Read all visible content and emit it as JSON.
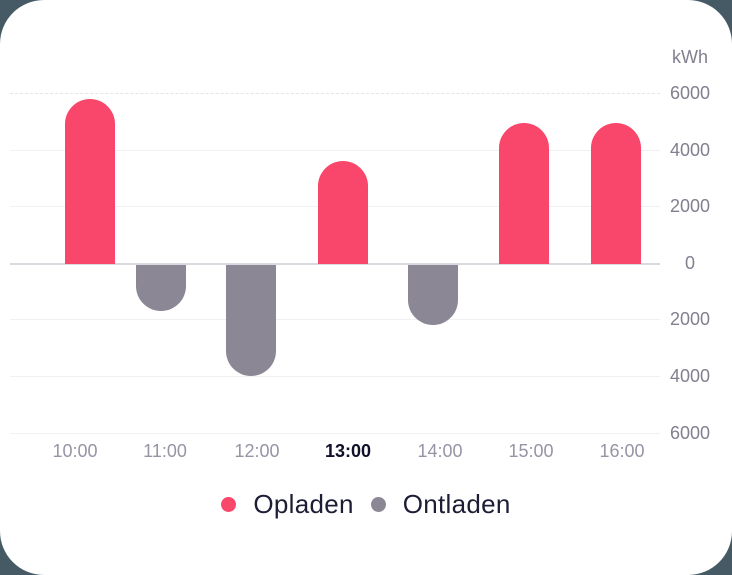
{
  "colors": {
    "page_background": "#455A64",
    "card_background": "#FFFFFF",
    "opladen": "#F9466B",
    "ontladen": "#8B8794",
    "gridline": "#F0F0F5",
    "zero_line": "#D9D9DF",
    "axis_label": "#80808F",
    "selected_label": "#10102A",
    "legend_text": "#1D1D35"
  },
  "chart_data": {
    "type": "bar",
    "title": "",
    "categories": [
      "10:00",
      "11:00",
      "12:00",
      "13:00",
      "14:00",
      "15:00",
      "16:00"
    ],
    "highlighted_category": "13:00",
    "series": [
      {
        "name": "Opladen",
        "color": "#F9466B",
        "values": [
          5800,
          null,
          null,
          3600,
          null,
          4950,
          4950
        ]
      },
      {
        "name": "Ontladen",
        "color": "#8B8794",
        "values": [
          null,
          -1700,
          -4000,
          null,
          -2200,
          null,
          null
        ]
      }
    ],
    "y_axis": {
      "unit": "kWh",
      "tick_values": [
        6000,
        4000,
        2000,
        0,
        -2000,
        -4000,
        -6000
      ],
      "tick_labels": [
        "6000",
        "4000",
        "2000",
        "0",
        "2000",
        "4000",
        "6000"
      ],
      "side": "right"
    },
    "ylim": [
      -6000,
      6000
    ],
    "grid": true,
    "legend_position": "bottom"
  }
}
